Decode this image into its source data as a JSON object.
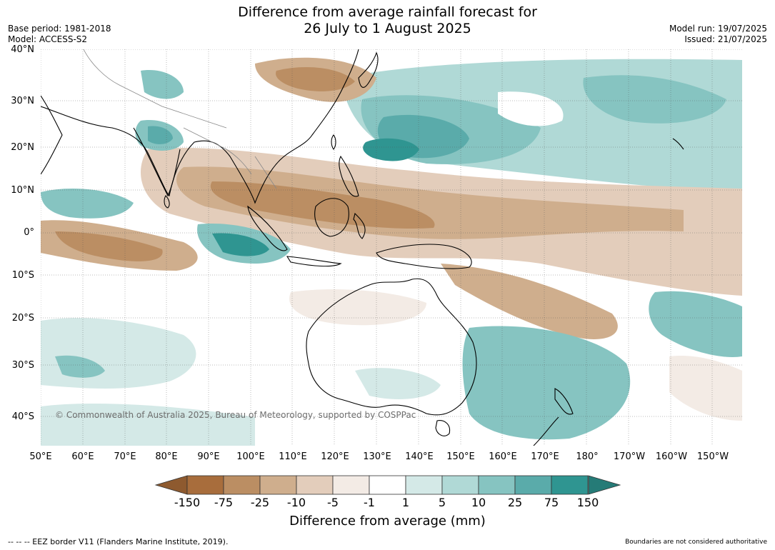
{
  "title_line1": "Difference from average rainfall forecast for",
  "title_line2": "26 July to 1 August 2025",
  "base_period": "Base period: 1981-2018",
  "model": "Model: ACCESS-S2",
  "model_run": "Model run: 19/07/2025",
  "issued": "Issued: 21/07/2025",
  "copyright": "© Commonwealth of Australia 2025, Bureau of Meteorology, supported by COSPPac",
  "lat_labels": [
    "40°N",
    "30°N",
    "20°N",
    "10°N",
    "0°",
    "10°S",
    "20°S",
    "30°S",
    "40°S"
  ],
  "lon_labels": [
    "50°E",
    "60°E",
    "70°E",
    "80°E",
    "90°E",
    "100°E",
    "110°E",
    "120°E",
    "130°E",
    "140°E",
    "150°E",
    "160°E",
    "170°E",
    "180°",
    "170°W",
    "160°W",
    "150°W"
  ],
  "colorbar": {
    "ticks": [
      "-150",
      "-75",
      "-25",
      "-10",
      "-5",
      "-1",
      "1",
      "5",
      "10",
      "25",
      "75",
      "150"
    ],
    "colors": [
      "#a86d3c",
      "#bb8e63",
      "#cfae8d",
      "#e3cdbb",
      "#f3ebe5",
      "#ffffff",
      "#d4e9e7",
      "#b0d9d6",
      "#86c4c1",
      "#5aabaa",
      "#2f9591"
    ],
    "extend_low_color": "#8e5a2f",
    "extend_high_color": "#257b77",
    "label": "Difference from average (mm)"
  },
  "footer_left": "--  --  -- EEZ border V11 (Flanders Marine Institute, 2019).",
  "footer_right": "Boundaries are not considered authoritative"
}
